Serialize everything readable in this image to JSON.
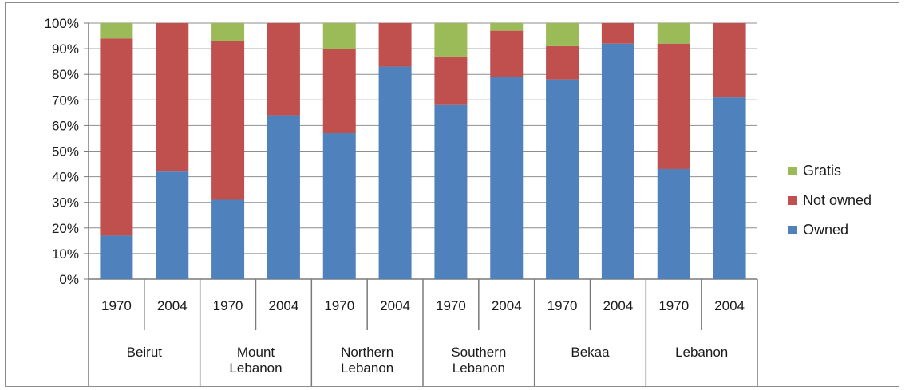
{
  "chart_data": {
    "type": "bar",
    "stacked": true,
    "percent": true,
    "title": "",
    "xlabel": "",
    "ylabel": "",
    "ylim": [
      0,
      100
    ],
    "y_ticks": [
      "0%",
      "10%",
      "20%",
      "30%",
      "40%",
      "50%",
      "60%",
      "70%",
      "80%",
      "90%",
      "100%"
    ],
    "grid": true,
    "legend_position": "right",
    "groups": [
      {
        "label": "Beirut",
        "lines": [
          "Beirut"
        ]
      },
      {
        "label": "Mount Lebanon",
        "lines": [
          "Mount",
          "Lebanon"
        ]
      },
      {
        "label": "Northern Lebanon",
        "lines": [
          "Northern",
          "Lebanon"
        ]
      },
      {
        "label": "Southern Lebanon",
        "lines": [
          "Southern",
          "Lebanon"
        ]
      },
      {
        "label": "Bekaa",
        "lines": [
          "Bekaa"
        ]
      },
      {
        "label": "Lebanon",
        "lines": [
          "Lebanon"
        ]
      }
    ],
    "categories": [
      "1970",
      "2004",
      "1970",
      "2004",
      "1970",
      "2004",
      "1970",
      "2004",
      "1970",
      "2004",
      "1970",
      "2004"
    ],
    "series": [
      {
        "name": "Owned",
        "color": "#4f81bd",
        "values": [
          17,
          42,
          31,
          64,
          57,
          83,
          68,
          79,
          78,
          92,
          43,
          71
        ]
      },
      {
        "name": "Not owned",
        "color": "#c0504d",
        "values": [
          77,
          58,
          62,
          36,
          33,
          17,
          19,
          18,
          13,
          8,
          49,
          29
        ]
      },
      {
        "name": "Gratis",
        "color": "#9bbb59",
        "values": [
          6,
          0,
          7,
          0,
          10,
          0,
          13,
          3,
          9,
          0,
          8,
          0
        ]
      }
    ],
    "legend": [
      "Gratis",
      "Not owned",
      "Owned"
    ]
  }
}
